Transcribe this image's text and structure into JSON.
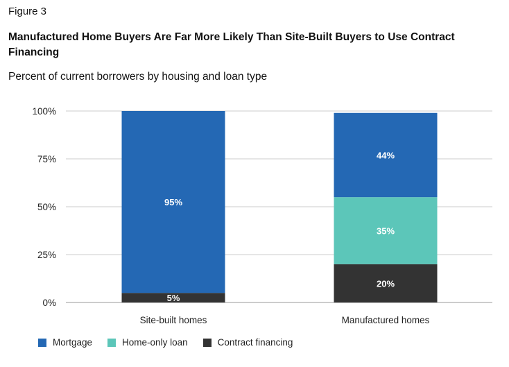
{
  "figure_label": "Figure 3",
  "chart_data": {
    "type": "bar",
    "stacked": true,
    "title": "Manufactured Home Buyers Are Far More Likely Than Site-Built Buyers to Use Contract Financing",
    "subtitle": "Percent of current borrowers by housing and loan type",
    "categories": [
      "Site-built homes",
      "Manufactured homes"
    ],
    "yticks": [
      "0%",
      "25%",
      "50%",
      "75%",
      "100%"
    ],
    "ylim": [
      0,
      100
    ],
    "grid": true,
    "legend_position": "bottom-left",
    "series": [
      {
        "name": "Contract financing",
        "color": "#333333",
        "values": [
          5,
          20
        ],
        "labels": [
          "5%",
          "20%"
        ]
      },
      {
        "name": "Home-only loan",
        "color": "#5cc6b9",
        "values": [
          0,
          35
        ],
        "labels": [
          "",
          "35%"
        ]
      },
      {
        "name": "Mortgage",
        "color": "#2468b4",
        "values": [
          95,
          44
        ],
        "labels": [
          "95%",
          "44%"
        ]
      }
    ],
    "legend": [
      {
        "name": "Mortgage",
        "color": "#2468b4"
      },
      {
        "name": "Home-only loan",
        "color": "#5cc6b9"
      },
      {
        "name": "Contract financing",
        "color": "#333333"
      }
    ]
  }
}
